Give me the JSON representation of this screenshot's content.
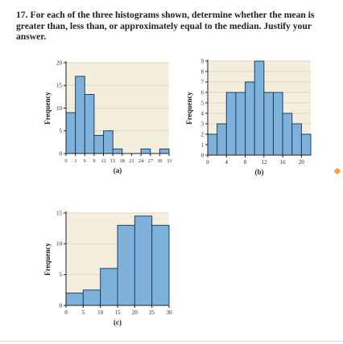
{
  "problem": {
    "number": "17.",
    "text": "For each of the three histograms shown, determine whether the mean is greater than, less than, or approximately equal to the median. Justify your answer."
  },
  "colors": {
    "bar_fill": "#7fb2db",
    "bar_stroke": "#1f3f66",
    "plot_background": "#f4eedc",
    "grid": "#e2d7bf",
    "accent": "#f0a030"
  },
  "chart_data": [
    {
      "id": "a",
      "panel_label": "(a)",
      "type": "bar",
      "ylabel": "Frequency",
      "xlabel": "",
      "bin_width": 3,
      "bin_starts": [
        0,
        3,
        6,
        9,
        12,
        15,
        18,
        21,
        24,
        27,
        30
      ],
      "values": [
        9,
        17,
        13,
        4,
        5,
        1,
        0,
        0,
        1,
        0,
        1
      ],
      "xlim": [
        0,
        33
      ],
      "ylim": [
        0,
        20
      ],
      "xticks": [
        "0",
        "3",
        "6",
        "9",
        "12",
        "15",
        "18",
        "21",
        "24",
        "27",
        "30",
        "33"
      ],
      "xtick_values": [
        0,
        3,
        6,
        9,
        12,
        15,
        18,
        21,
        24,
        27,
        30,
        33
      ],
      "yticks": [
        "0",
        "5",
        "10",
        "15",
        "20"
      ],
      "ytick_values": [
        0,
        5,
        10,
        15,
        20
      ],
      "grid": "horizontal"
    },
    {
      "id": "b",
      "panel_label": "(b)",
      "type": "bar",
      "ylabel": "Frequency",
      "xlabel": "",
      "bin_width": 2,
      "bin_starts": [
        0,
        2,
        4,
        6,
        8,
        10,
        12,
        14,
        16,
        18,
        20
      ],
      "values": [
        2,
        3,
        6,
        6,
        7,
        9,
        6,
        6,
        4,
        3,
        2
      ],
      "xlim": [
        0,
        22
      ],
      "ylim": [
        0,
        9
      ],
      "xticks": [
        "0",
        "4",
        "8",
        "12",
        "16",
        "20"
      ],
      "xtick_values": [
        0,
        4,
        8,
        12,
        16,
        20
      ],
      "yticks": [
        "0",
        "1",
        "2",
        "3",
        "4",
        "5",
        "6",
        "7",
        "8",
        "9"
      ],
      "ytick_values": [
        0,
        1,
        2,
        3,
        4,
        5,
        6,
        7,
        8,
        9
      ],
      "grid": "horizontal"
    },
    {
      "id": "c",
      "panel_label": "(c)",
      "type": "bar",
      "ylabel": "Frequency",
      "xlabel": "",
      "bin_width": 5,
      "bin_starts": [
        0,
        5,
        10,
        15,
        20,
        25
      ],
      "values": [
        2,
        2.5,
        6,
        13,
        14.5,
        13
      ],
      "xlim": [
        0,
        30
      ],
      "ylim": [
        0,
        15
      ],
      "xticks": [
        "0",
        "5",
        "10",
        "15",
        "20",
        "25",
        "30"
      ],
      "xtick_values": [
        0,
        5,
        10,
        15,
        20,
        25,
        30
      ],
      "yticks": [
        "0",
        "5",
        "10",
        "15"
      ],
      "ytick_values": [
        0,
        5,
        10,
        15
      ],
      "grid": "horizontal"
    }
  ]
}
